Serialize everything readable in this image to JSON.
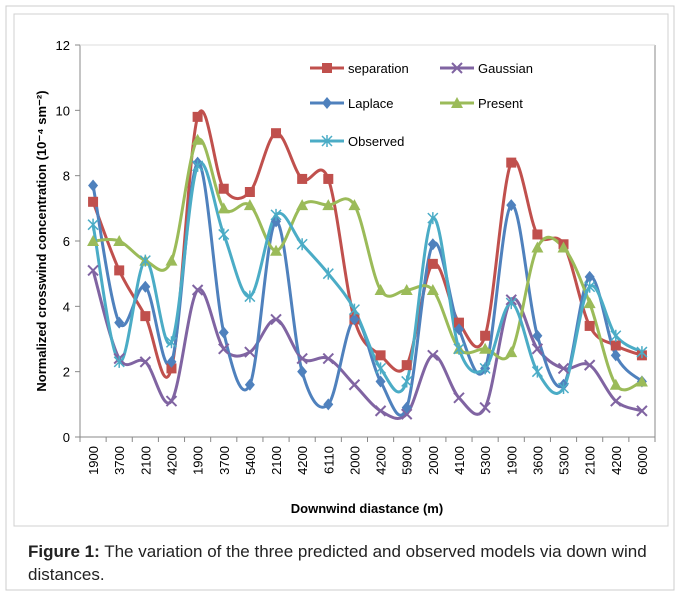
{
  "chart_data": {
    "type": "line",
    "smooth": true,
    "y_label": "Normalized crosswind concentration (10⁻⁴ sm⁻²)",
    "x_label": "Downwind diastance (m)",
    "categories": [
      "1900",
      "3700",
      "2100",
      "4200",
      "1900",
      "3700",
      "5400",
      "2100",
      "4200",
      "6110",
      "2000",
      "4200",
      "5900",
      "2000",
      "4100",
      "5300",
      "1900",
      "3600",
      "5300",
      "2100",
      "4200",
      "6000"
    ],
    "ylim": [
      0,
      12
    ],
    "yticks": [
      0,
      2,
      4,
      6,
      8,
      10,
      12
    ],
    "series": [
      {
        "name": "separation",
        "color": "#c0504d",
        "marker": "square",
        "values": [
          7.2,
          5.1,
          3.7,
          2.1,
          9.8,
          7.6,
          7.5,
          9.3,
          7.9,
          7.9,
          3.6,
          2.5,
          2.2,
          5.3,
          3.5,
          3.1,
          8.4,
          6.2,
          5.9,
          3.4,
          2.8,
          2.5
        ]
      },
      {
        "name": "Gaussian",
        "color": "#8064a2",
        "marker": "x",
        "values": [
          5.1,
          2.4,
          2.3,
          1.1,
          4.5,
          2.7,
          2.6,
          3.6,
          2.4,
          2.4,
          1.6,
          0.8,
          0.7,
          2.5,
          1.2,
          0.9,
          4.2,
          2.7,
          2.1,
          2.2,
          1.1,
          0.8
        ]
      },
      {
        "name": "Laplace",
        "color": "#4f81bd",
        "marker": "diamond",
        "values": [
          7.7,
          3.5,
          4.6,
          2.3,
          8.4,
          3.2,
          1.6,
          6.6,
          2.0,
          1.0,
          3.6,
          1.7,
          0.9,
          5.9,
          3.3,
          2.1,
          7.1,
          3.1,
          1.6,
          4.9,
          2.5,
          1.7
        ]
      },
      {
        "name": "Present",
        "color": "#9bbb59",
        "marker": "triangle",
        "values": [
          6.0,
          6.0,
          5.4,
          5.4,
          9.1,
          7.0,
          7.1,
          5.7,
          7.1,
          7.1,
          7.1,
          4.5,
          4.5,
          4.5,
          2.7,
          2.7,
          2.6,
          5.8,
          5.8,
          4.1,
          1.6,
          1.7
        ]
      },
      {
        "name": "Observed",
        "color": "#4bacc6",
        "marker": "asterisk",
        "values": [
          6.5,
          2.3,
          5.4,
          2.9,
          8.3,
          6.2,
          4.3,
          6.8,
          5.9,
          5.0,
          3.9,
          2.1,
          1.7,
          6.7,
          2.7,
          2.1,
          4.1,
          2.0,
          1.5,
          4.6,
          3.1,
          2.6
        ]
      }
    ]
  },
  "caption": {
    "label": "Figure 1:",
    "text": " The variation of the three predicted and observed models via down wind distances."
  }
}
